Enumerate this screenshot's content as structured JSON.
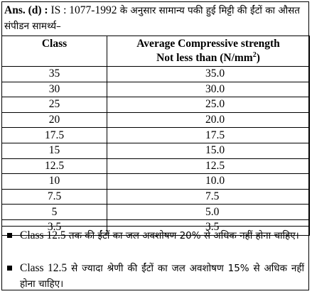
{
  "header": {
    "answer_label": "Ans. (d) :",
    "standard": " IS : 1077-1992",
    "description": " के अनुसार सामान्य पकी हुई मिट्टी की ईंटों का औसत संपीडन सामर्थ्य–"
  },
  "table": {
    "columns": [
      "Class",
      "Average Compressive strength Not less than (N/mm²)"
    ],
    "column_line1": "Average Compressive strength",
    "column_line2_prefix": "Not less than (N/mm",
    "column_line2_sup": "2",
    "column_line2_suffix": ")",
    "rows": [
      {
        "class": "35",
        "strength": "35.0"
      },
      {
        "class": "30",
        "strength": "30.0"
      },
      {
        "class": "25",
        "strength": "25.0"
      },
      {
        "class": "20",
        "strength": "20.0"
      },
      {
        "class": "17.5",
        "strength": "17.5"
      },
      {
        "class": "15",
        "strength": "15.0"
      },
      {
        "class": "12.5",
        "strength": "12.5"
      },
      {
        "class": "10",
        "strength": "10.0"
      },
      {
        "class": "7.5",
        "strength": "7.5"
      },
      {
        "class": "5",
        "strength": "5.0"
      },
      {
        "class": "3.5",
        "strength": "3.5"
      }
    ]
  },
  "notes": [
    {
      "icon": "square-bullet-icon",
      "text_latin": "Class 12.5",
      "text_hindi": " तक की ईंटों का जल अवशोषण 20% से अधिक नहीं होना चाहिए।"
    },
    {
      "icon": "square-bullet-icon",
      "text_latin": "Class 12.5",
      "text_hindi": " से ज्यादा श्रेणी की ईंटों का जल अवशोषण 15% से अधिक नहीं होना चाहिए।"
    }
  ]
}
